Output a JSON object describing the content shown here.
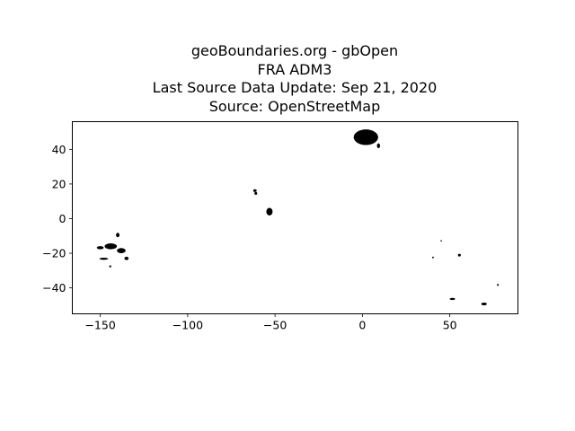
{
  "chart_data": {
    "type": "map",
    "title_lines": [
      "geoBoundaries.org - gbOpen",
      "FRA ADM3",
      "Last Source Data Update: Sep 21, 2020",
      "Source: OpenStreetMap"
    ],
    "xlabel": "",
    "ylabel": "",
    "xlim": [
      -166,
      89
    ],
    "ylim": [
      -55,
      56
    ],
    "xticks": [
      -150,
      -100,
      -50,
      0,
      50
    ],
    "xtick_labels": [
      "−150",
      "−100",
      "−50",
      "0",
      "50"
    ],
    "yticks": [
      40,
      20,
      0,
      -20,
      -40
    ],
    "ytick_labels": [
      "40",
      "20",
      "0",
      "−20",
      "−40"
    ],
    "grid": false,
    "fill_color": "#000000",
    "regions": [
      {
        "name": "Metropolitan France",
        "lon": 2,
        "lat": 47,
        "rx": 7,
        "ry": 4.5
      },
      {
        "name": "Corsica",
        "lon": 9.2,
        "lat": 42.1,
        "rx": 0.9,
        "ry": 1.4
      },
      {
        "name": "Guadeloupe",
        "lon": -61.5,
        "lat": 16.2,
        "rx": 1,
        "ry": 0.8
      },
      {
        "name": "Martinique",
        "lon": -61,
        "lat": 14.6,
        "rx": 0.8,
        "ry": 0.8
      },
      {
        "name": "French Guiana",
        "lon": -53.2,
        "lat": 4,
        "rx": 1.8,
        "ry": 2.2
      },
      {
        "name": "French Polynesia - Society Islands",
        "lon": -150,
        "lat": -16.8,
        "rx": 2,
        "ry": 0.9
      },
      {
        "name": "French Polynesia - Tuamotu",
        "lon": -144,
        "lat": -16,
        "rx": 3.5,
        "ry": 1.7
      },
      {
        "name": "French Polynesia - Tuamotu East",
        "lon": -138,
        "lat": -18.5,
        "rx": 2.5,
        "ry": 1.5
      },
      {
        "name": "French Polynesia - Marquesas",
        "lon": -140,
        "lat": -9.5,
        "rx": 1,
        "ry": 1.3
      },
      {
        "name": "French Polynesia - Gambier",
        "lon": -135,
        "lat": -23,
        "rx": 1.2,
        "ry": 1
      },
      {
        "name": "French Polynesia - Austral",
        "lon": -148,
        "lat": -23.2,
        "rx": 2.5,
        "ry": 0.6
      },
      {
        "name": "French Polynesia - Rapa",
        "lon": -144.3,
        "lat": -27.6,
        "rx": 0.6,
        "ry": 0.6
      },
      {
        "name": "Mayotte",
        "lon": 45.1,
        "lat": -12.8,
        "rx": 0.4,
        "ry": 0.4
      },
      {
        "name": "Reunion",
        "lon": 55.5,
        "lat": -21.1,
        "rx": 0.8,
        "ry": 0.8
      },
      {
        "name": "Europa Island",
        "lon": 40.4,
        "lat": -22.4,
        "rx": 0.5,
        "ry": 0.5
      },
      {
        "name": "Crozet Islands",
        "lon": 51.5,
        "lat": -46.4,
        "rx": 1.6,
        "ry": 0.6
      },
      {
        "name": "Kerguelen Islands",
        "lon": 69.6,
        "lat": -49.3,
        "rx": 1.6,
        "ry": 0.8
      },
      {
        "name": "Amsterdam and St Paul Islands",
        "lon": 77.5,
        "lat": -38.3,
        "rx": 0.5,
        "ry": 0.6
      }
    ]
  }
}
